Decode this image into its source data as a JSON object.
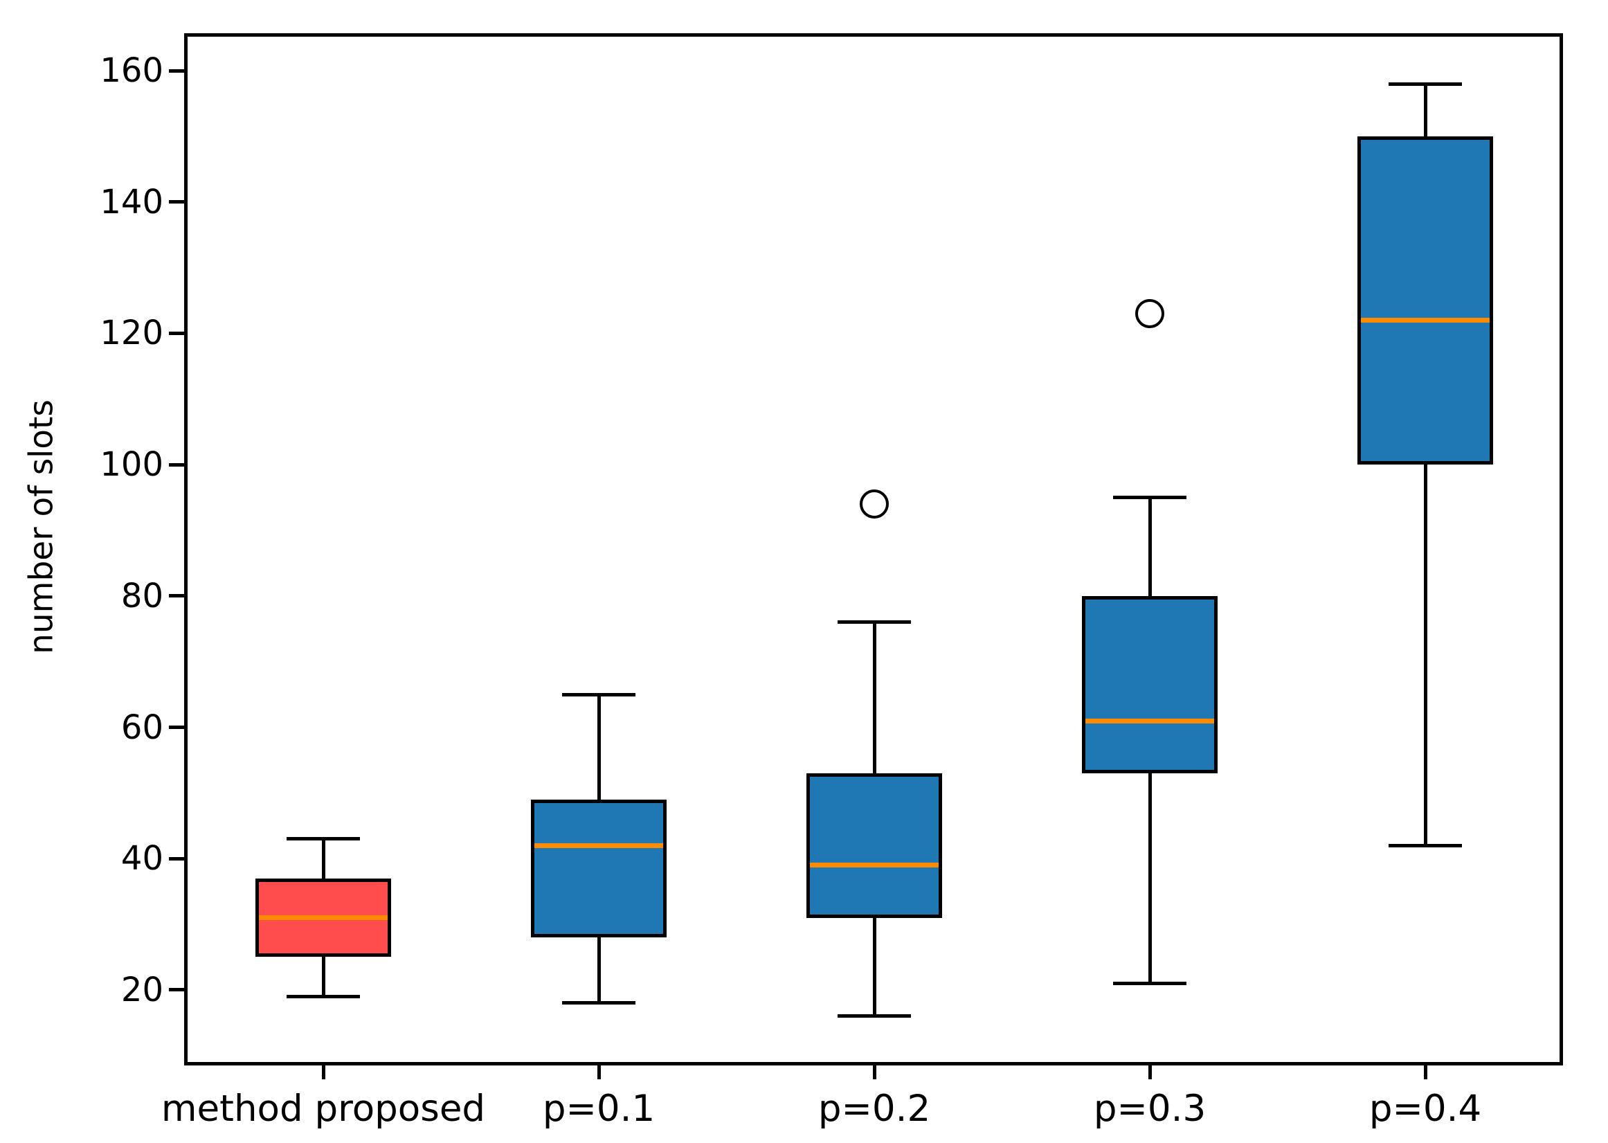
{
  "chart_data": {
    "type": "boxplot",
    "title": "",
    "xlabel": "",
    "ylabel": "number of slots",
    "categories": [
      "method proposed",
      "p=0.1",
      "p=0.2",
      "p=0.3",
      "p=0.4"
    ],
    "y_ticks": [
      20,
      40,
      60,
      80,
      100,
      120,
      140,
      160
    ],
    "ylim": [
      8.7,
      165.5
    ],
    "grid": false,
    "legend_position": "none",
    "series": [
      {
        "label": "method proposed",
        "whisker_low": 19,
        "q1": 25,
        "median": 31,
        "q3": 37,
        "whisker_high": 43,
        "outliers": [],
        "fill": "#ff4d4d"
      },
      {
        "label": "p=0.1",
        "whisker_low": 18,
        "q1": 28,
        "median": 42,
        "q3": 49,
        "whisker_high": 65,
        "outliers": [],
        "fill": "#1f77b4"
      },
      {
        "label": "p=0.2",
        "whisker_low": 16,
        "q1": 31,
        "median": 39,
        "q3": 53,
        "whisker_high": 76,
        "outliers": [
          94
        ],
        "fill": "#1f77b4"
      },
      {
        "label": "p=0.3",
        "whisker_low": 21,
        "q1": 53,
        "median": 61,
        "q3": 80,
        "whisker_high": 95,
        "outliers": [
          123
        ],
        "fill": "#1f77b4"
      },
      {
        "label": "p=0.4",
        "whisker_low": 42,
        "q1": 100,
        "median": 122,
        "q3": 150,
        "whisker_high": 158,
        "outliers": [],
        "fill": "#1f77b4"
      }
    ],
    "colors": {
      "median_line": "#ff8c00",
      "box_edge": "#000000",
      "axis": "#000000",
      "background": "#ffffff"
    }
  }
}
